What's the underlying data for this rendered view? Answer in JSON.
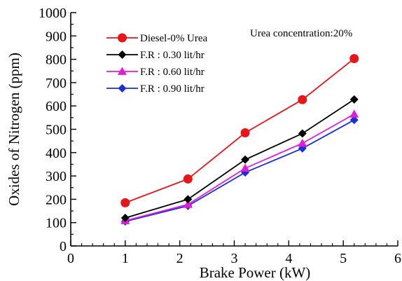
{
  "chart_data": {
    "type": "line",
    "xlabel": "Brake Power (kW)",
    "ylabel": "Oxides of Nitrogen (ppm)",
    "xlim": [
      0,
      6
    ],
    "ylim": [
      0,
      1000
    ],
    "xticks": [
      0,
      1,
      2,
      3,
      4,
      5,
      6
    ],
    "yticks": [
      0,
      100,
      200,
      300,
      400,
      500,
      600,
      700,
      800,
      900,
      1000
    ],
    "annotation": "Urea concentration:20%",
    "grid": false,
    "legend_position": "top-left",
    "series": [
      {
        "name": "Diesel-0% Urea",
        "color": "#e8151b",
        "marker": "circle",
        "x": [
          1.0,
          2.15,
          3.2,
          4.25,
          5.2
        ],
        "y": [
          185,
          287,
          485,
          627,
          803
        ]
      },
      {
        "name": "F.R : 0.30 lit/hr",
        "color": "#000000",
        "marker": "diamond",
        "x": [
          1.0,
          2.15,
          3.2,
          4.25,
          5.2
        ],
        "y": [
          120,
          200,
          370,
          482,
          628
        ]
      },
      {
        "name": "F.R : 0.60 lit/hr",
        "color": "#e41bd6",
        "marker": "triangle",
        "x": [
          1.0,
          2.15,
          3.2,
          4.25,
          5.2
        ],
        "y": [
          108,
          178,
          333,
          440,
          565
        ]
      },
      {
        "name": "F.R : 0.90 lit/hr",
        "color": "#1a2ee0",
        "marker": "diamond",
        "x": [
          1.0,
          2.15,
          3.2,
          4.25,
          5.2
        ],
        "y": [
          105,
          172,
          315,
          418,
          540
        ]
      }
    ]
  }
}
